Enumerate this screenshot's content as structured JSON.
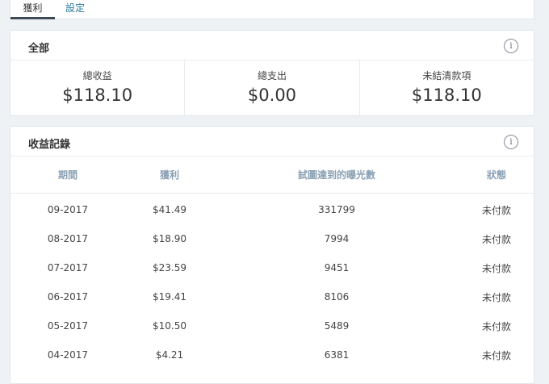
{
  "tabs": [
    {
      "label": "獲利",
      "active": true
    },
    {
      "label": "設定",
      "active": false
    }
  ],
  "summary": {
    "title": "全部",
    "info_icon": "info-icon",
    "stats": [
      {
        "label": "總收益",
        "value": "$118.10"
      },
      {
        "label": "總支出",
        "value": "$0.00"
      },
      {
        "label": "未結清款項",
        "value": "$118.10"
      }
    ]
  },
  "history": {
    "title": "收益記錄",
    "info_icon": "info-icon",
    "columns": [
      "期間",
      "獲利",
      "試圖達到的曝光數",
      "狀態"
    ],
    "rows": [
      [
        "09-2017",
        "$41.49",
        "331799",
        "未付款"
      ],
      [
        "08-2017",
        "$18.90",
        "7994",
        "未付款"
      ],
      [
        "07-2017",
        "$23.59",
        "9451",
        "未付款"
      ],
      [
        "06-2017",
        "$19.41",
        "8106",
        "未付款"
      ],
      [
        "05-2017",
        "$10.50",
        "5489",
        "未付款"
      ],
      [
        "04-2017",
        "$4.21",
        "6381",
        "未付款"
      ]
    ]
  }
}
